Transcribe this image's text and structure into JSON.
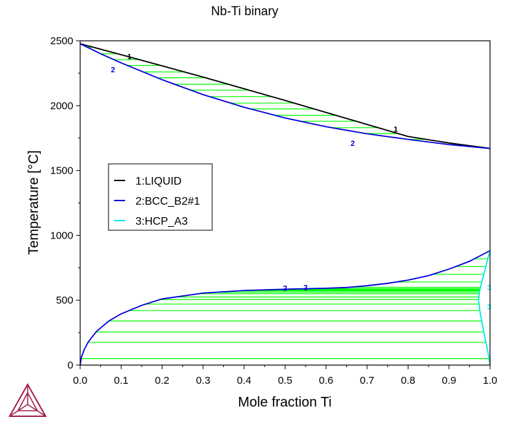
{
  "chart_data": {
    "type": "line",
    "title": "Nb-Ti binary",
    "xlabel": "Mole fraction Ti",
    "ylabel": "Temperature [°C]",
    "xlim": [
      0,
      1
    ],
    "ylim": [
      0,
      2500
    ],
    "x_ticks": [
      "0.0",
      "0.1",
      "0.2",
      "0.3",
      "0.4",
      "0.5",
      "0.6",
      "0.7",
      "0.8",
      "0.9",
      "1.0"
    ],
    "y_ticks": [
      "0",
      "500",
      "1000",
      "1500",
      "2000",
      "2500"
    ],
    "grid": false,
    "legend_position": "center-left",
    "legend": [
      {
        "label": "1:LIQUID",
        "color": "#000000"
      },
      {
        "label": "2:BCC_B2#1",
        "color": "#0000dd"
      },
      {
        "label": "3:HCP_A3",
        "color": "#00e8e8"
      }
    ],
    "tie_line_color": "#00ff00",
    "series": [
      {
        "key": "liquidus",
        "color": "#000000",
        "x": [
          0.0,
          0.1,
          0.2,
          0.3,
          0.4,
          0.5,
          0.6,
          0.7,
          0.8,
          0.9,
          1.0
        ],
        "y": [
          2477,
          2393,
          2307,
          2220,
          2130,
          2040,
          1948,
          1855,
          1762,
          1712,
          1670
        ]
      },
      {
        "key": "solidus",
        "color": "#0000dd",
        "x": [
          0.0,
          0.05,
          0.1,
          0.2,
          0.3,
          0.4,
          0.5,
          0.6,
          0.7,
          0.8,
          0.9,
          1.0
        ],
        "y": [
          2477,
          2400,
          2330,
          2200,
          2085,
          1988,
          1905,
          1838,
          1783,
          1740,
          1700,
          1670
        ]
      },
      {
        "key": "bcc_miscibility",
        "color": "#0000dd",
        "x": [
          0.0,
          0.003,
          0.01,
          0.02,
          0.04,
          0.07,
          0.1,
          0.15,
          0.2,
          0.3,
          0.4,
          0.5,
          0.6,
          0.65,
          0.7,
          0.75,
          0.8,
          0.85,
          0.9,
          0.95,
          1.0
        ],
        "y": [
          0,
          60,
          120,
          180,
          260,
          340,
          395,
          460,
          510,
          555,
          575,
          585,
          592,
          598,
          612,
          630,
          655,
          690,
          740,
          800,
          882
        ]
      },
      {
        "key": "hcp_boundary",
        "color": "#00e8e8",
        "x": [
          1.0,
          0.993,
          0.985,
          0.978,
          0.974,
          0.972,
          0.976,
          0.985,
          0.995,
          1.0
        ],
        "y": [
          882,
          800,
          700,
          620,
          560,
          500,
          400,
          250,
          100,
          0
        ]
      }
    ],
    "curve_labels": [
      {
        "text": "1",
        "x": 0.12,
        "y": 2380,
        "color": "#000000"
      },
      {
        "text": "2",
        "x": 0.08,
        "y": 2280,
        "color": "#0000dd"
      },
      {
        "text": "1",
        "x": 0.77,
        "y": 1820,
        "color": "#000000"
      },
      {
        "text": "2",
        "x": 0.665,
        "y": 1710,
        "color": "#0000dd"
      },
      {
        "text": "2",
        "x": 0.5,
        "y": 595,
        "color": "#0000dd"
      },
      {
        "text": "2",
        "x": 0.55,
        "y": 600,
        "color": "#0000dd"
      },
      {
        "text": "3",
        "x": 0.998,
        "y": 600,
        "color": "#00e8e8"
      },
      {
        "text": "3",
        "x": 0.998,
        "y": 450,
        "color": "#00e8e8"
      }
    ],
    "upper_tie_lines": [
      2450,
      2400,
      2355,
      2310,
      2260,
      2215,
      2165,
      2120,
      2070,
      2020,
      1975,
      1925,
      1880,
      1830,
      1785,
      1740,
      1700
    ],
    "lower_tie_lines": [
      50,
      175,
      255,
      340,
      420,
      470,
      505,
      525,
      550,
      560,
      570,
      575,
      580,
      585,
      590,
      600,
      640,
      700,
      760,
      820
    ]
  }
}
